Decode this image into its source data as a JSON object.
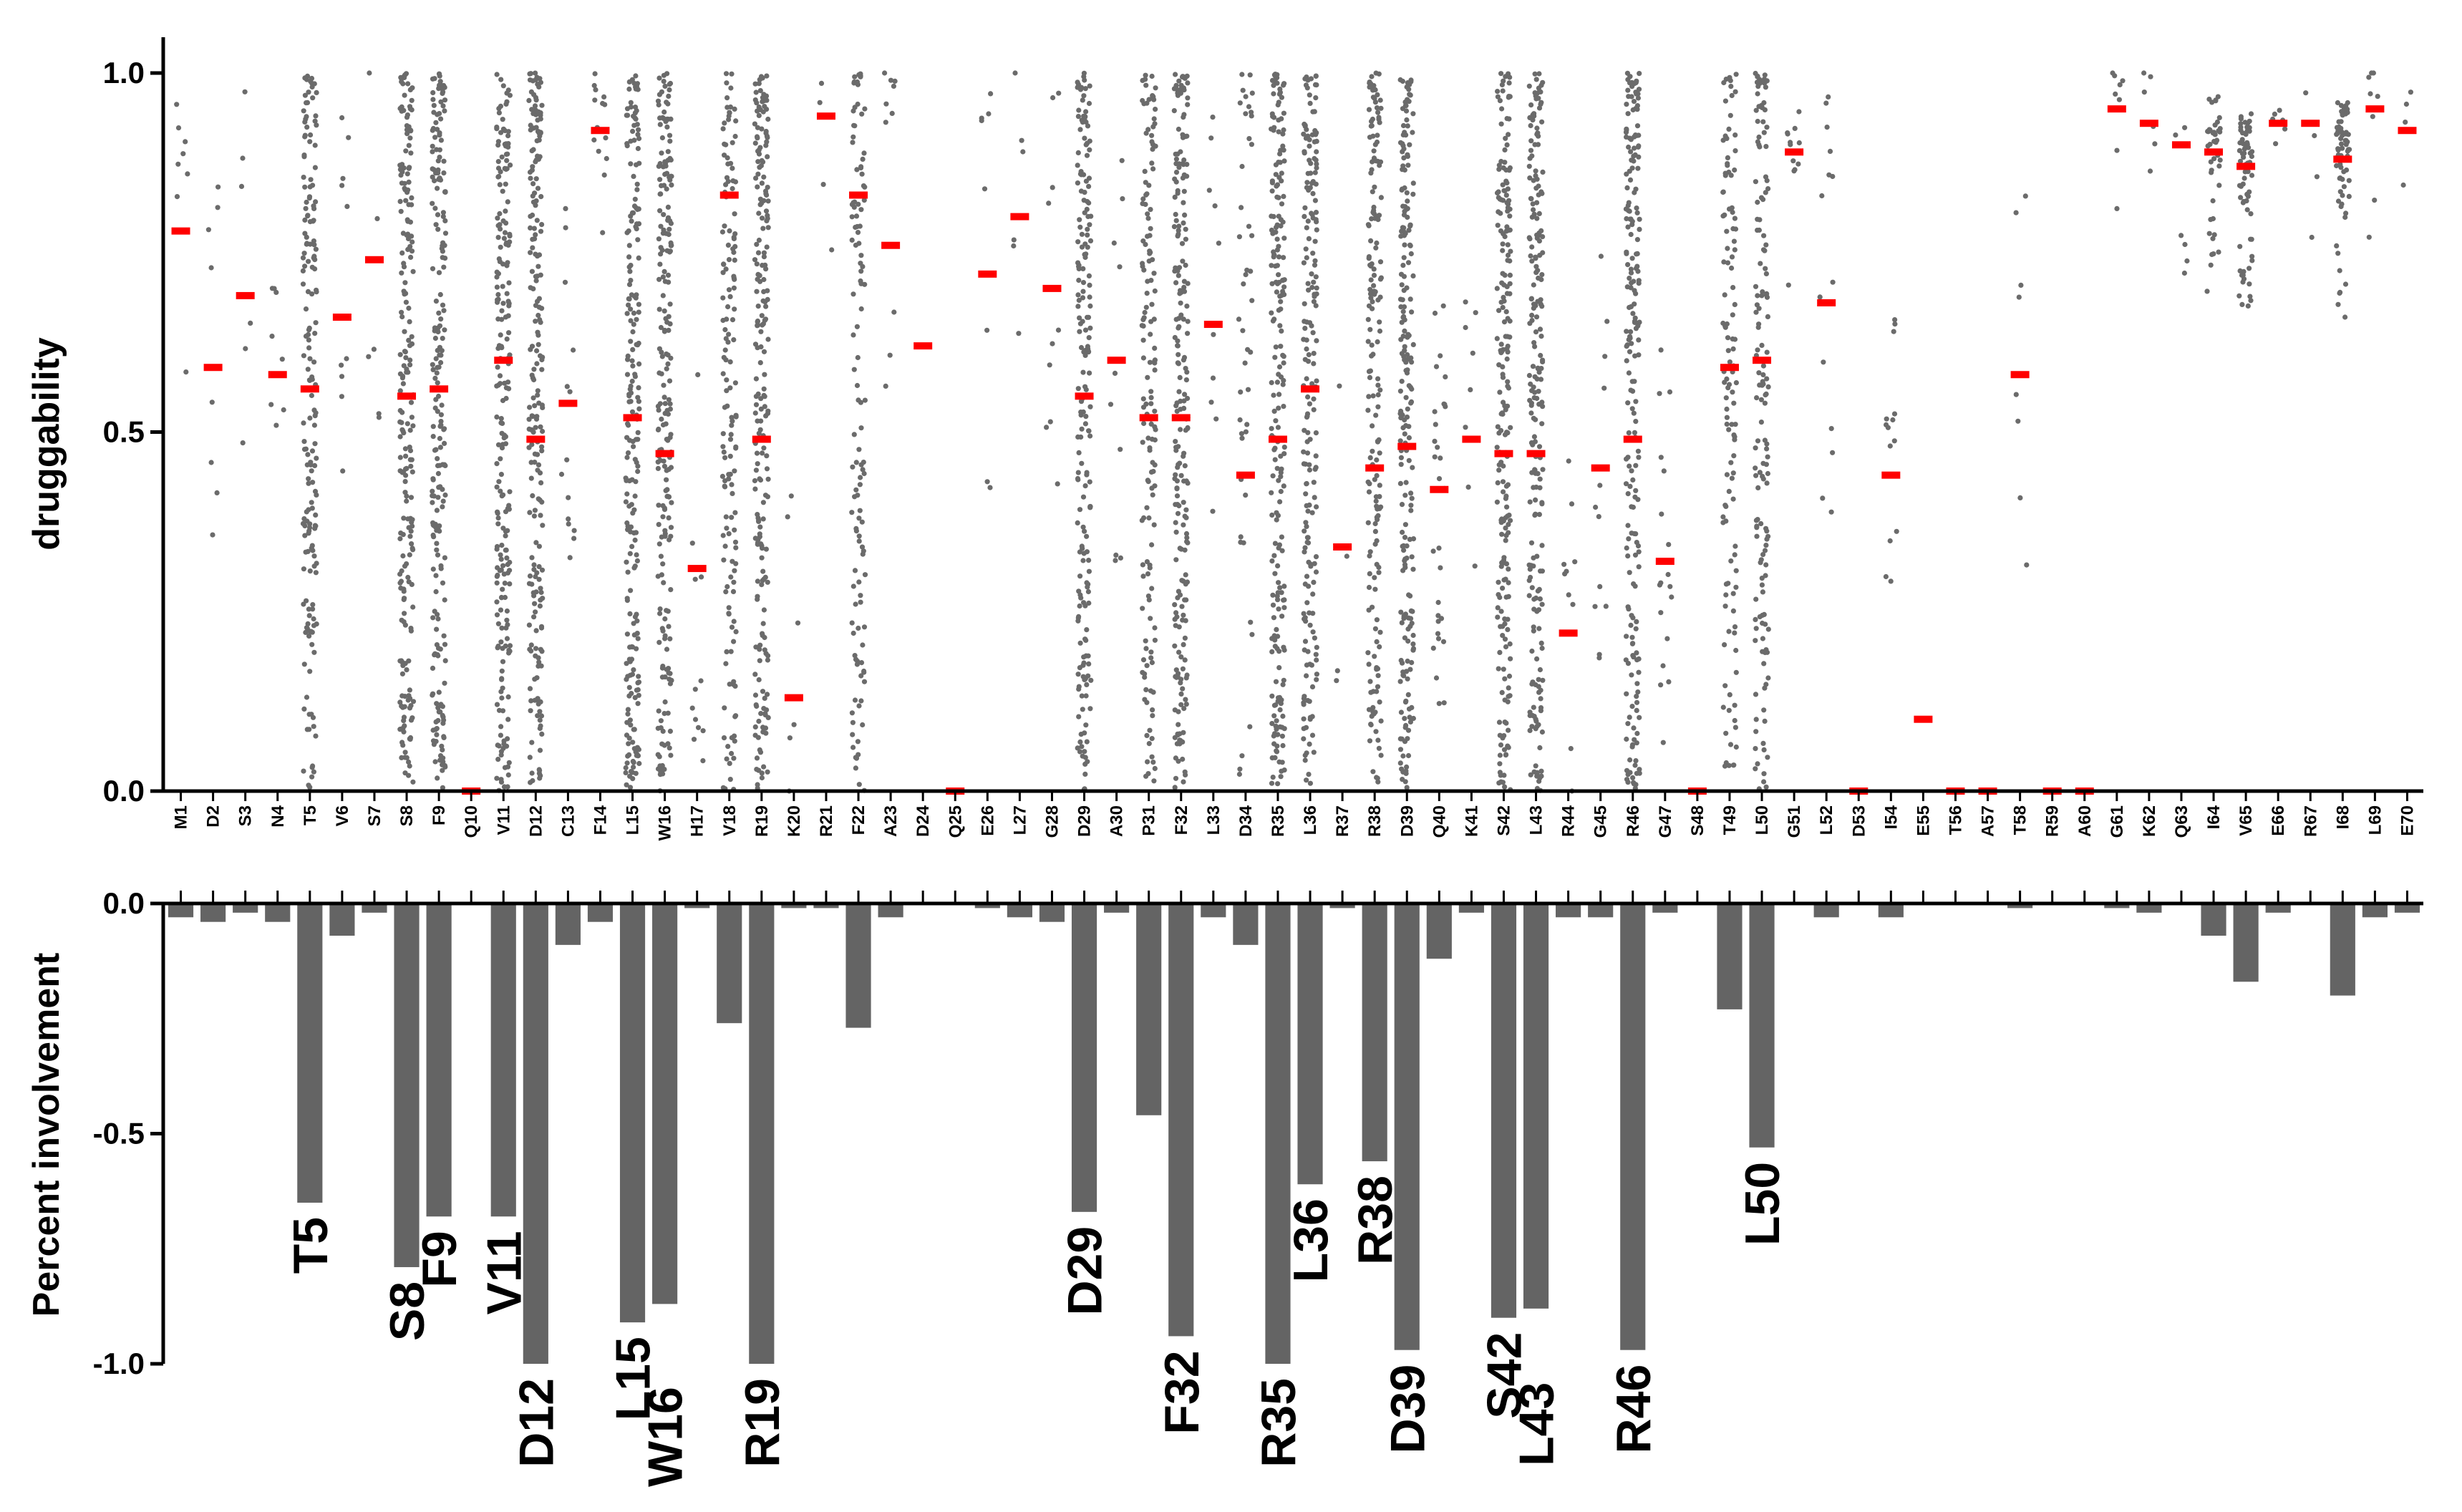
{
  "chart_data": [
    {
      "type": "scatter",
      "ylabel": "druggability",
      "ylim": [
        0,
        1
      ],
      "yticks": [
        "0.0",
        "0.5",
        "1.0"
      ],
      "categories": [
        "M1",
        "D2",
        "S3",
        "N4",
        "T5",
        "V6",
        "S7",
        "S8",
        "F9",
        "Q10",
        "V11",
        "D12",
        "C13",
        "F14",
        "L15",
        "W16",
        "H17",
        "V18",
        "R19",
        "K20",
        "R21",
        "F22",
        "A23",
        "D24",
        "Q25",
        "E26",
        "L27",
        "G28",
        "D29",
        "A30",
        "P31",
        "F32",
        "L33",
        "D34",
        "R35",
        "L36",
        "R37",
        "R38",
        "D39",
        "Q40",
        "K41",
        "S42",
        "L43",
        "R44",
        "G45",
        "R46",
        "G47",
        "S48",
        "T49",
        "L50",
        "G51",
        "L52",
        "D53",
        "I54",
        "E55",
        "T56",
        "A57",
        "T58",
        "R59",
        "A60",
        "G61",
        "K62",
        "Q63",
        "I64",
        "V65",
        "E66",
        "R67",
        "I68",
        "L69",
        "E70"
      ],
      "mean_values": [
        0.78,
        0.59,
        0.69,
        0.58,
        0.56,
        0.66,
        0.74,
        0.55,
        0.56,
        0.0,
        0.6,
        0.49,
        0.54,
        0.92,
        0.52,
        0.47,
        0.31,
        0.83,
        0.49,
        0.13,
        0.94,
        0.83,
        0.76,
        0.62,
        0.0,
        0.72,
        0.8,
        0.7,
        0.55,
        0.6,
        0.52,
        0.52,
        0.65,
        0.44,
        0.49,
        0.56,
        0.34,
        0.45,
        0.48,
        0.42,
        0.49,
        0.47,
        0.47,
        0.22,
        0.45,
        0.49,
        0.32,
        0.0,
        0.59,
        0.6,
        0.89,
        0.68,
        0.0,
        0.44,
        0.1,
        0.0,
        0.0,
        0.58,
        0.0,
        0.0,
        0.95,
        0.93,
        0.9,
        0.89,
        0.87,
        0.93,
        0.93,
        0.88,
        0.95,
        0.92
      ],
      "point_density": [
        8,
        8,
        6,
        8,
        180,
        10,
        6,
        220,
        220,
        0,
        220,
        220,
        14,
        14,
        220,
        220,
        12,
        150,
        220,
        6,
        4,
        120,
        10,
        0,
        0,
        8,
        6,
        10,
        200,
        10,
        150,
        220,
        10,
        45,
        220,
        200,
        4,
        180,
        220,
        30,
        8,
        220,
        220,
        10,
        12,
        220,
        18,
        0,
        120,
        150,
        12,
        14,
        0,
        14,
        0,
        0,
        0,
        8,
        0,
        0,
        8,
        6,
        6,
        45,
        75,
        6,
        4,
        70,
        8,
        4
      ],
      "marker_color": "#6b6b6b",
      "mean_color": "#ff0000"
    },
    {
      "type": "bar",
      "ylabel": "Percent involvement",
      "ylim": [
        -1,
        0
      ],
      "yticks": [
        "0.0",
        "-0.5",
        "-1.0"
      ],
      "values": [
        -0.03,
        -0.04,
        -0.02,
        -0.04,
        -0.65,
        -0.07,
        -0.02,
        -0.79,
        -0.68,
        0.0,
        -0.68,
        -1.0,
        -0.09,
        -0.04,
        -0.91,
        -0.87,
        -0.01,
        -0.26,
        -1.0,
        -0.01,
        -0.01,
        -0.27,
        -0.03,
        0.0,
        0.0,
        -0.01,
        -0.03,
        -0.04,
        -0.67,
        -0.02,
        -0.46,
        -0.94,
        -0.03,
        -0.09,
        -1.0,
        -0.61,
        -0.01,
        -0.56,
        -0.97,
        -0.12,
        -0.02,
        -0.9,
        -0.88,
        -0.03,
        -0.03,
        -0.97,
        -0.02,
        0.0,
        -0.23,
        -0.53,
        0.0,
        -0.03,
        0.0,
        -0.03,
        0.0,
        0.0,
        0.0,
        -0.01,
        0.0,
        0.0,
        -0.01,
        -0.02,
        0.0,
        -0.07,
        -0.17,
        -0.02,
        0.0,
        -0.2,
        -0.03,
        -0.02
      ],
      "bar_color": "#646464",
      "annotations": [
        "T5",
        "S8",
        "F9",
        "V11",
        "D12",
        "L15",
        "W16",
        "R19",
        "D29",
        "F32",
        "R35",
        "L36",
        "R38",
        "D39",
        "S42",
        "L43",
        "R46",
        "L50"
      ]
    }
  ]
}
